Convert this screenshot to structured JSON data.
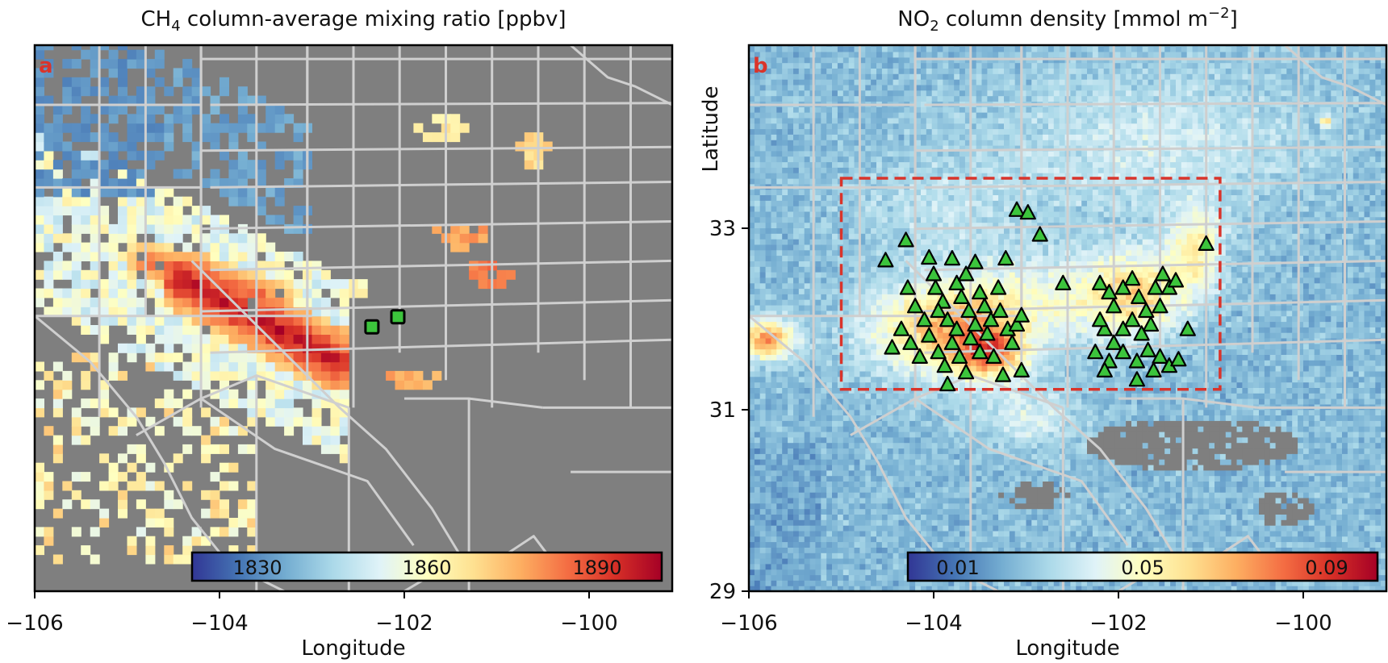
{
  "panel_a": {
    "label": "a",
    "title_main": "CH",
    "title_sub": "4",
    "title_rest": " column-average mixing ratio [ppbv]",
    "xlabel": "Longitude",
    "colorbar_ticks": [
      "1830",
      "1860",
      "1890"
    ],
    "colorbar_range": [
      1815,
      1905
    ],
    "marker": "green-square",
    "points": [
      [
        -102.35,
        31.88
      ],
      [
        -102.07,
        31.99
      ]
    ]
  },
  "panel_b": {
    "label": "b",
    "title_main": "NO",
    "title_sub": "2",
    "title_rest": " column density [mmol m",
    "title_sup": "−2",
    "title_end": "]",
    "xlabel": "Longitude",
    "ylabel": "Latitude",
    "colorbar_ticks": [
      "0.01",
      "0.05",
      "0.09"
    ],
    "colorbar_range": [
      -0.01,
      0.11
    ],
    "marker": "green-triangle",
    "box": {
      "lon": [
        -105.0,
        -100.9
      ],
      "lat": [
        31.2,
        33.5
      ]
    }
  },
  "axes": {
    "x_ticks": [
      "−106",
      "−104",
      "−102",
      "−100"
    ],
    "x_tick_values": [
      -106,
      -104,
      -102,
      -100
    ],
    "y_ticks": [
      "33",
      "31",
      "29"
    ],
    "y_tick_values": [
      33,
      31,
      29
    ],
    "xlim": [
      -106,
      -99.1
    ],
    "ylim": [
      29,
      34.95
    ]
  },
  "colors": {
    "nodata": "#7f7f7f",
    "borders": "#cfcfcf",
    "box": "#d9342b",
    "marker_fill": "#3cc43c",
    "colormap": [
      "#313695",
      "#4575b4",
      "#74add1",
      "#abd9e9",
      "#e0f3f8",
      "#ffffbf",
      "#fee090",
      "#fdae61",
      "#f46d43",
      "#d73027",
      "#a50026"
    ]
  },
  "chart_data": [
    {
      "type": "heatmap",
      "title": "CH4 column-average mixing ratio [ppbv]",
      "xlabel": "Longitude",
      "xlim": [
        -106,
        -99.1
      ],
      "ylim": [
        29,
        34.95
      ],
      "colorbar": {
        "ticks": [
          1830,
          1860,
          1890
        ],
        "range": [
          1815,
          1905
        ],
        "colormap": "RdYlBu_r"
      },
      "points": [
        {
          "lon": -102.35,
          "lat": 31.88
        },
        {
          "lon": -102.07,
          "lat": 31.99
        }
      ]
    },
    {
      "type": "heatmap",
      "title": "NO2 column density [mmol m−2]",
      "xlabel": "Longitude",
      "ylabel": "Latitude",
      "xlim": [
        -106,
        -99.1
      ],
      "ylim": [
        29,
        34.95
      ],
      "colorbar": {
        "ticks": [
          0.01,
          0.05,
          0.09
        ],
        "range": [
          -0.01,
          0.11
        ],
        "colormap": "RdYlBu_r"
      },
      "region": {
        "lon": [
          -105.0,
          -100.9
        ],
        "lat": [
          31.2,
          33.5
        ]
      },
      "sites": [
        [
          -104.3,
          32.82
        ],
        [
          -104.52,
          32.6
        ],
        [
          -104.05,
          32.63
        ],
        [
          -103.8,
          32.62
        ],
        [
          -103.55,
          32.58
        ],
        [
          -103.22,
          32.62
        ],
        [
          -103.1,
          33.15
        ],
        [
          -102.98,
          33.12
        ],
        [
          -102.85,
          32.88
        ],
        [
          -102.6,
          32.35
        ],
        [
          -104.28,
          32.3
        ],
        [
          -104.2,
          32.1
        ],
        [
          -104.1,
          31.95
        ],
        [
          -103.98,
          32.3
        ],
        [
          -103.9,
          32.15
        ],
        [
          -103.85,
          31.95
        ],
        [
          -103.75,
          32.35
        ],
        [
          -103.7,
          32.2
        ],
        [
          -103.62,
          32.05
        ],
        [
          -103.55,
          31.9
        ],
        [
          -103.5,
          32.25
        ],
        [
          -103.45,
          32.1
        ],
        [
          -103.38,
          31.95
        ],
        [
          -103.3,
          32.3
        ],
        [
          -103.28,
          32.05
        ],
        [
          -103.2,
          31.85
        ],
        [
          -103.15,
          31.7
        ],
        [
          -103.1,
          31.9
        ],
        [
          -103.05,
          32.0
        ],
        [
          -104.35,
          31.85
        ],
        [
          -104.25,
          31.7
        ],
        [
          -104.15,
          31.55
        ],
        [
          -104.05,
          31.78
        ],
        [
          -103.95,
          31.6
        ],
        [
          -103.88,
          31.45
        ],
        [
          -103.8,
          31.7
        ],
        [
          -103.72,
          31.55
        ],
        [
          -103.65,
          31.38
        ],
        [
          -103.6,
          31.75
        ],
        [
          -103.5,
          31.6
        ],
        [
          -103.42,
          31.8
        ],
        [
          -103.35,
          31.55
        ],
        [
          -103.25,
          31.35
        ],
        [
          -103.05,
          31.4
        ],
        [
          -103.85,
          31.25
        ],
        [
          -104.0,
          32.45
        ],
        [
          -103.65,
          32.45
        ],
        [
          -104.45,
          31.65
        ],
        [
          -103.95,
          32.05
        ],
        [
          -103.75,
          31.85
        ],
        [
          -102.2,
          32.35
        ],
        [
          -102.1,
          32.25
        ],
        [
          -102.05,
          32.1
        ],
        [
          -101.95,
          32.3
        ],
        [
          -101.85,
          32.4
        ],
        [
          -101.78,
          32.2
        ],
        [
          -101.7,
          32.05
        ],
        [
          -101.6,
          32.3
        ],
        [
          -101.52,
          32.45
        ],
        [
          -101.45,
          32.3
        ],
        [
          -101.38,
          32.38
        ],
        [
          -101.55,
          32.1
        ],
        [
          -101.65,
          31.9
        ],
        [
          -101.75,
          31.8
        ],
        [
          -101.85,
          31.95
        ],
        [
          -101.95,
          31.85
        ],
        [
          -102.05,
          31.7
        ],
        [
          -102.15,
          31.85
        ],
        [
          -102.25,
          31.6
        ],
        [
          -102.1,
          31.5
        ],
        [
          -101.95,
          31.6
        ],
        [
          -101.8,
          31.5
        ],
        [
          -101.68,
          31.62
        ],
        [
          -101.55,
          31.55
        ],
        [
          -101.45,
          31.45
        ],
        [
          -101.35,
          31.52
        ],
        [
          -101.25,
          31.85
        ],
        [
          -101.05,
          32.78
        ],
        [
          -101.62,
          31.4
        ],
        [
          -101.8,
          31.3
        ],
        [
          -102.15,
          31.4
        ],
        [
          -102.2,
          31.95
        ]
      ]
    }
  ]
}
